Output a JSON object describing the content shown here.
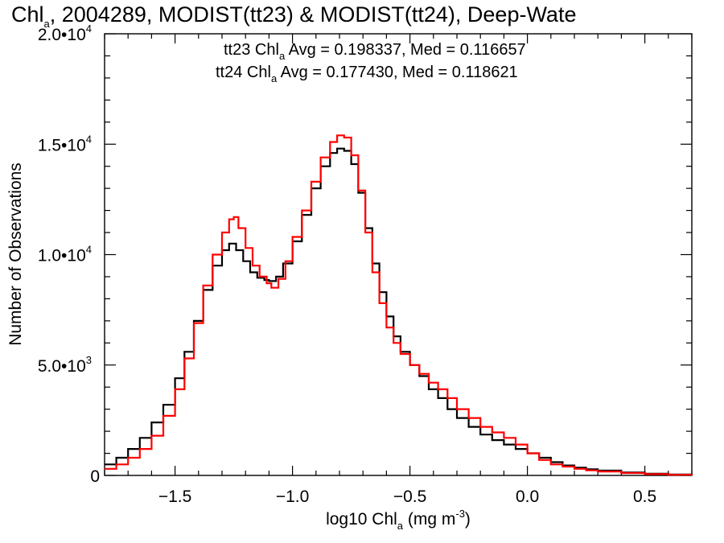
{
  "chart_data": {
    "type": "line",
    "step": true,
    "title": {
      "prefix": "Chl",
      "sub": "a",
      "rest": ", 2004289, MODIST(tt23) & MODIST(tt24), Deep-Wate"
    },
    "xlabel": {
      "prefix": "log10 Chl",
      "sub": "a",
      "mid": " (mg m",
      "sup": "-3",
      "end": ")"
    },
    "ylabel": "Number of Observations",
    "xlim": [
      -1.8,
      0.7
    ],
    "ylim": [
      0,
      20000
    ],
    "x_ticks": [
      {
        "value": -1.5,
        "label": "-1.5"
      },
      {
        "value": -1.0,
        "label": "-1.0"
      },
      {
        "value": -0.5,
        "label": "-0.5"
      },
      {
        "value": 0.0,
        "label": "0.0"
      },
      {
        "value": 0.5,
        "label": "0.5"
      }
    ],
    "y_ticks": [
      {
        "value": 0,
        "mant": "0",
        "exp": ""
      },
      {
        "value": 5000,
        "mant": "5.0•10",
        "exp": "3"
      },
      {
        "value": 10000,
        "mant": "1.0•10",
        "exp": "4"
      },
      {
        "value": 15000,
        "mant": "1.5•10",
        "exp": "4"
      },
      {
        "value": 20000,
        "mant": "2.0•10",
        "exp": "4"
      }
    ],
    "stats": [
      {
        "series": "tt23",
        "color": "#000000",
        "prefix": "tt23 Chl",
        "sub": "a",
        "rest": " Avg = 0.198337, Med = 0.116657"
      },
      {
        "series": "tt24",
        "color": "#ff0000",
        "prefix": "tt24 Chl",
        "sub": "a",
        "rest": " Avg = 0.177430, Med = 0.118621"
      }
    ],
    "series": [
      {
        "name": "tt23",
        "color": "#000000",
        "points": [
          [
            -1.8,
            500
          ],
          [
            -1.75,
            800
          ],
          [
            -1.7,
            1200
          ],
          [
            -1.65,
            1700
          ],
          [
            -1.6,
            2400
          ],
          [
            -1.55,
            3200
          ],
          [
            -1.5,
            4400
          ],
          [
            -1.46,
            5600
          ],
          [
            -1.42,
            7000
          ],
          [
            -1.38,
            8400
          ],
          [
            -1.34,
            9500
          ],
          [
            -1.3,
            10200
          ],
          [
            -1.27,
            10500
          ],
          [
            -1.24,
            10200
          ],
          [
            -1.21,
            9700
          ],
          [
            -1.18,
            9200
          ],
          [
            -1.15,
            8950
          ],
          [
            -1.12,
            8850
          ],
          [
            -1.1,
            8800
          ],
          [
            -1.07,
            9000
          ],
          [
            -1.04,
            9600
          ],
          [
            -1.0,
            10600
          ],
          [
            -0.96,
            11800
          ],
          [
            -0.92,
            13000
          ],
          [
            -0.88,
            14000
          ],
          [
            -0.84,
            14600
          ],
          [
            -0.81,
            14800
          ],
          [
            -0.78,
            14700
          ],
          [
            -0.75,
            14100
          ],
          [
            -0.72,
            12800
          ],
          [
            -0.69,
            11200
          ],
          [
            -0.66,
            9600
          ],
          [
            -0.63,
            8300
          ],
          [
            -0.6,
            7200
          ],
          [
            -0.57,
            6300
          ],
          [
            -0.54,
            5600
          ],
          [
            -0.5,
            5000
          ],
          [
            -0.46,
            4500
          ],
          [
            -0.42,
            3900
          ],
          [
            -0.38,
            3500
          ],
          [
            -0.34,
            3000
          ],
          [
            -0.3,
            2600
          ],
          [
            -0.25,
            2200
          ],
          [
            -0.2,
            1850
          ],
          [
            -0.15,
            1600
          ],
          [
            -0.1,
            1400
          ],
          [
            -0.05,
            1200
          ],
          [
            0.0,
            1000
          ],
          [
            0.05,
            800
          ],
          [
            0.1,
            600
          ],
          [
            0.15,
            450
          ],
          [
            0.2,
            350
          ],
          [
            0.25,
            280
          ],
          [
            0.3,
            220
          ],
          [
            0.4,
            130
          ],
          [
            0.5,
            80
          ],
          [
            0.6,
            40
          ],
          [
            0.7,
            20
          ]
        ]
      },
      {
        "name": "tt24",
        "color": "#ff0000",
        "points": [
          [
            -1.8,
            300
          ],
          [
            -1.75,
            500
          ],
          [
            -1.7,
            800
          ],
          [
            -1.65,
            1200
          ],
          [
            -1.6,
            1800
          ],
          [
            -1.55,
            2700
          ],
          [
            -1.5,
            3900
          ],
          [
            -1.46,
            5300
          ],
          [
            -1.42,
            6900
          ],
          [
            -1.38,
            8600
          ],
          [
            -1.34,
            10000
          ],
          [
            -1.3,
            11000
          ],
          [
            -1.27,
            11600
          ],
          [
            -1.25,
            11700
          ],
          [
            -1.23,
            11200
          ],
          [
            -1.2,
            10300
          ],
          [
            -1.17,
            9500
          ],
          [
            -1.14,
            9000
          ],
          [
            -1.11,
            8700
          ],
          [
            -1.09,
            8500
          ],
          [
            -1.06,
            8900
          ],
          [
            -1.03,
            9700
          ],
          [
            -1.0,
            10800
          ],
          [
            -0.96,
            12000
          ],
          [
            -0.92,
            13300
          ],
          [
            -0.88,
            14400
          ],
          [
            -0.84,
            15100
          ],
          [
            -0.81,
            15400
          ],
          [
            -0.78,
            15300
          ],
          [
            -0.75,
            14500
          ],
          [
            -0.72,
            12900
          ],
          [
            -0.69,
            11000
          ],
          [
            -0.66,
            9200
          ],
          [
            -0.63,
            7800
          ],
          [
            -0.6,
            6700
          ],
          [
            -0.57,
            6000
          ],
          [
            -0.54,
            5500
          ],
          [
            -0.5,
            5000
          ],
          [
            -0.46,
            4600
          ],
          [
            -0.42,
            4200
          ],
          [
            -0.38,
            3900
          ],
          [
            -0.34,
            3500
          ],
          [
            -0.3,
            3000
          ],
          [
            -0.25,
            2600
          ],
          [
            -0.2,
            2200
          ],
          [
            -0.15,
            1950
          ],
          [
            -0.1,
            1700
          ],
          [
            -0.05,
            1400
          ],
          [
            0.0,
            1000
          ],
          [
            0.05,
            700
          ],
          [
            0.1,
            500
          ],
          [
            0.15,
            400
          ],
          [
            0.2,
            300
          ],
          [
            0.25,
            230
          ],
          [
            0.3,
            180
          ],
          [
            0.4,
            110
          ],
          [
            0.5,
            60
          ],
          [
            0.6,
            30
          ],
          [
            0.7,
            15
          ]
        ]
      }
    ]
  }
}
